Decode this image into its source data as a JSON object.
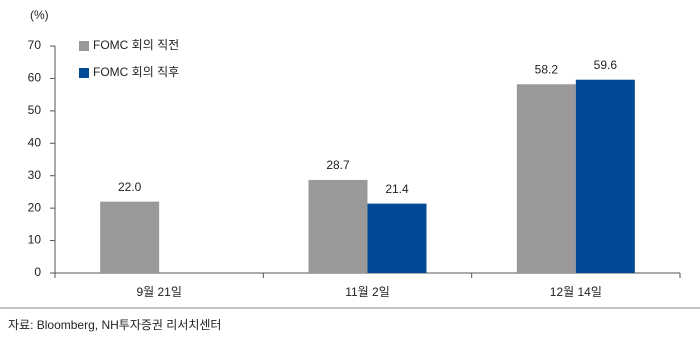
{
  "chart_data": {
    "type": "bar",
    "y_unit_label": "(%)",
    "categories": [
      "9월 21일",
      "11월 2일",
      "12월 14일"
    ],
    "series": [
      {
        "name": "FOMC 회의 직전",
        "color": "#999999",
        "values": [
          22.0,
          28.7,
          58.2
        ],
        "value_labels": [
          "22.0",
          "28.7",
          "58.2"
        ]
      },
      {
        "name": "FOMC 회의 직후",
        "color": "#004a96",
        "values": [
          null,
          21.4,
          59.6
        ],
        "value_labels": [
          null,
          "21.4",
          "59.6"
        ]
      }
    ],
    "ylim": [
      0,
      70
    ],
    "yticks": [
      0,
      10,
      20,
      30,
      40,
      50,
      60,
      70
    ],
    "grid": false,
    "legend": "top-left",
    "source": "자료: Bloomberg, NH투자증권 리서치센터"
  }
}
